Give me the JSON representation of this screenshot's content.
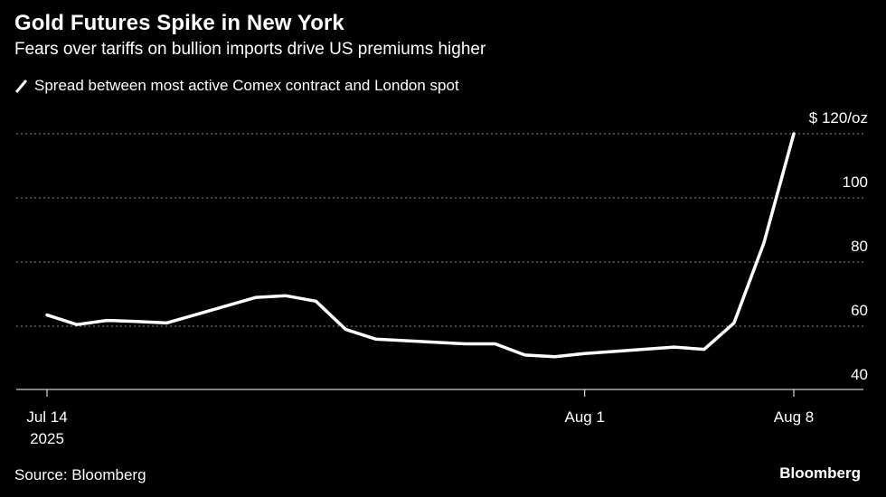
{
  "title": "Gold Futures Spike in New York",
  "subtitle": "Fears over tariffs on bullion imports drive US premiums higher",
  "legend_label": "Spread between most active Comex contract and London spot",
  "source": "Source: Bloomberg",
  "brand": "Bloomberg",
  "colors": {
    "background": "#000000",
    "line": "#ffffff",
    "grid": "#8a8a8a"
  },
  "chart_data": {
    "type": "line",
    "title": "Gold Futures Spike in New York",
    "subtitle": "Fears over tariffs on bullion imports drive US premiums higher",
    "ylim": [
      35,
      122
    ],
    "grid": true,
    "y_ticks": [
      {
        "value": 40,
        "label": "40"
      },
      {
        "value": 60,
        "label": "60"
      },
      {
        "value": 80,
        "label": "80"
      },
      {
        "value": 100,
        "label": "100"
      },
      {
        "value": 120,
        "label": "$ 120/oz"
      }
    ],
    "x_ticks": [
      {
        "date": "2025-07-14",
        "label": "Jul 14",
        "sublabel": "2025"
      },
      {
        "date": "2025-08-01",
        "label": "Aug 1",
        "sublabel": ""
      },
      {
        "date": "2025-08-08",
        "label": "Aug 8",
        "sublabel": ""
      }
    ],
    "x_range": [
      "2025-07-13",
      "2025-08-10"
    ],
    "series": [
      {
        "name": "Spread between most active Comex contract and London spot",
        "points": [
          {
            "x": "2025-07-14",
            "y": 63.5
          },
          {
            "x": "2025-07-15",
            "y": 60.5
          },
          {
            "x": "2025-07-16",
            "y": 61.8
          },
          {
            "x": "2025-07-17",
            "y": 61.5
          },
          {
            "x": "2025-07-18",
            "y": 61.0
          },
          {
            "x": "2025-07-21",
            "y": 69.0
          },
          {
            "x": "2025-07-22",
            "y": 69.5
          },
          {
            "x": "2025-07-23",
            "y": 67.8
          },
          {
            "x": "2025-07-24",
            "y": 59.0
          },
          {
            "x": "2025-07-25",
            "y": 56.0
          },
          {
            "x": "2025-07-28",
            "y": 54.5
          },
          {
            "x": "2025-07-29",
            "y": 54.5
          },
          {
            "x": "2025-07-30",
            "y": 51.0
          },
          {
            "x": "2025-07-31",
            "y": 50.5
          },
          {
            "x": "2025-08-01",
            "y": 51.5
          },
          {
            "x": "2025-08-04",
            "y": 53.5
          },
          {
            "x": "2025-08-05",
            "y": 52.8
          },
          {
            "x": "2025-08-06",
            "y": 61.0
          },
          {
            "x": "2025-08-07",
            "y": 86.0
          },
          {
            "x": "2025-08-08",
            "y": 120.0
          }
        ]
      }
    ]
  }
}
